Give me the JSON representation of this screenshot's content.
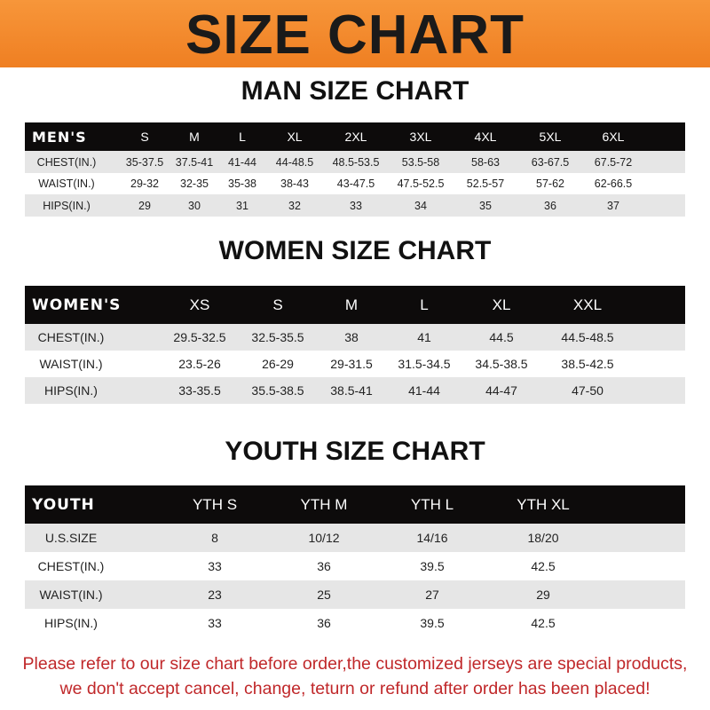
{
  "banner": {
    "title": "SIZE CHART",
    "color": "#f08a2c"
  },
  "men": {
    "title": "MAN SIZE CHART",
    "header": [
      "MEN'S",
      "S",
      "M",
      "L",
      "XL",
      "2XL",
      "3XL",
      "4XL",
      "5XL",
      "6XL"
    ],
    "rows": [
      [
        "CHEST(IN.)",
        "35-37.5",
        "37.5-41",
        "41-44",
        "44-48.5",
        "48.5-53.5",
        "53.5-58",
        "58-63",
        "63-67.5",
        "67.5-72"
      ],
      [
        "WAIST(IN.)",
        "29-32",
        "32-35",
        "35-38",
        "38-43",
        "43-47.5",
        "47.5-52.5",
        "52.5-57",
        "57-62",
        "62-66.5"
      ],
      [
        "HIPS(IN.)",
        "29",
        "30",
        "31",
        "32",
        "33",
        "34",
        "35",
        "36",
        "37"
      ]
    ]
  },
  "women": {
    "title": "WOMEN SIZE CHART",
    "header": [
      "WOMEN'S",
      "XS",
      "S",
      "M",
      "L",
      "XL",
      "XXL"
    ],
    "rows": [
      [
        "CHEST(IN.)",
        "29.5-32.5",
        "32.5-35.5",
        "38",
        "41",
        "44.5",
        "44.5-48.5"
      ],
      [
        "WAIST(IN.)",
        "23.5-26",
        "26-29",
        "29-31.5",
        "31.5-34.5",
        "34.5-38.5",
        "38.5-42.5"
      ],
      [
        "HIPS(IN.)",
        "33-35.5",
        "35.5-38.5",
        "38.5-41",
        "41-44",
        "44-47",
        "47-50"
      ]
    ]
  },
  "youth": {
    "title": "YOUTH SIZE CHART",
    "header": [
      "YOUTH",
      "YTH S",
      "YTH M",
      "YTH L",
      "YTH XL"
    ],
    "rows": [
      [
        "U.S.SIZE",
        "8",
        "10/12",
        "14/16",
        "18/20"
      ],
      [
        "CHEST(IN.)",
        "33",
        "36",
        "39.5",
        "42.5"
      ],
      [
        "WAIST(IN.)",
        "23",
        "25",
        "27",
        "29"
      ],
      [
        "HIPS(IN.)",
        "33",
        "36",
        "39.5",
        "42.5"
      ]
    ]
  },
  "footer": {
    "line1": "Please refer to our size chart before order,the customized jerseys are special products,",
    "line2": "we don't accept cancel, change, teturn or refund after order has been placed!",
    "color": "#c0282a"
  }
}
